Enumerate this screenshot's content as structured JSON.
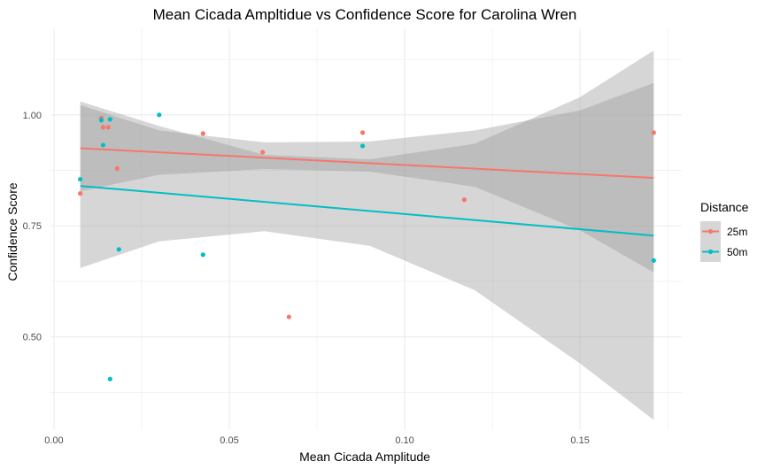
{
  "chart_data": {
    "type": "scatter",
    "title": "Mean Cicada Ampltidue vs Confidence Score for Carolina Wren",
    "xlabel": "Mean Cicada Amplitude",
    "ylabel": "Confidence Score",
    "xlim": [
      -0.001,
      0.179
    ],
    "ylim": [
      0.29,
      1.195
    ],
    "x_ticks": [
      0.0,
      0.05,
      0.1,
      0.15
    ],
    "x_tick_labels": [
      "0.00",
      "0.05",
      "0.10",
      "0.15"
    ],
    "y_ticks": [
      0.5,
      0.75,
      1.0
    ],
    "y_tick_labels": [
      "0.50",
      "0.75",
      "1.00"
    ],
    "grid": true,
    "legend": {
      "title": "Distance",
      "position": "right"
    },
    "series": [
      {
        "name": "25m",
        "color": "#F8766D",
        "points": [
          {
            "x": 0.0075,
            "y": 0.823
          },
          {
            "x": 0.0135,
            "y": 0.993
          },
          {
            "x": 0.014,
            "y": 0.972
          },
          {
            "x": 0.0155,
            "y": 0.972
          },
          {
            "x": 0.018,
            "y": 0.879
          },
          {
            "x": 0.0425,
            "y": 0.958
          },
          {
            "x": 0.0595,
            "y": 0.916
          },
          {
            "x": 0.067,
            "y": 0.545
          },
          {
            "x": 0.088,
            "y": 0.96
          },
          {
            "x": 0.117,
            "y": 0.809
          },
          {
            "x": 0.171,
            "y": 0.96
          }
        ],
        "fit": {
          "x": [
            0.0075,
            0.171
          ],
          "y": [
            0.925,
            0.858
          ]
        },
        "band": {
          "x": [
            0.0075,
            0.03,
            0.06,
            0.09,
            0.12,
            0.15,
            0.171
          ],
          "lower": [
            0.828,
            0.865,
            0.878,
            0.872,
            0.838,
            0.74,
            0.645
          ],
          "upper": [
            1.022,
            0.965,
            0.938,
            0.94,
            0.965,
            1.01,
            1.072
          ]
        }
      },
      {
        "name": "50m",
        "color": "#00BFC4",
        "points": [
          {
            "x": 0.0075,
            "y": 0.855
          },
          {
            "x": 0.0135,
            "y": 0.988
          },
          {
            "x": 0.014,
            "y": 0.932
          },
          {
            "x": 0.016,
            "y": 0.99
          },
          {
            "x": 0.016,
            "y": 0.405
          },
          {
            "x": 0.0185,
            "y": 0.697
          },
          {
            "x": 0.03,
            "y": 1.0
          },
          {
            "x": 0.0425,
            "y": 0.685
          },
          {
            "x": 0.088,
            "y": 0.93
          },
          {
            "x": 0.171,
            "y": 0.672
          }
        ],
        "fit": {
          "x": [
            0.0075,
            0.171
          ],
          "y": [
            0.84,
            0.728
          ]
        },
        "band": {
          "x": [
            0.0075,
            0.03,
            0.06,
            0.09,
            0.12,
            0.15,
            0.171
          ],
          "lower": [
            0.655,
            0.715,
            0.738,
            0.705,
            0.605,
            0.44,
            0.313
          ],
          "upper": [
            1.03,
            0.975,
            0.91,
            0.9,
            0.935,
            1.04,
            1.145
          ]
        }
      }
    ],
    "band_color": "#999999",
    "grid_color": "#ebebeb"
  }
}
